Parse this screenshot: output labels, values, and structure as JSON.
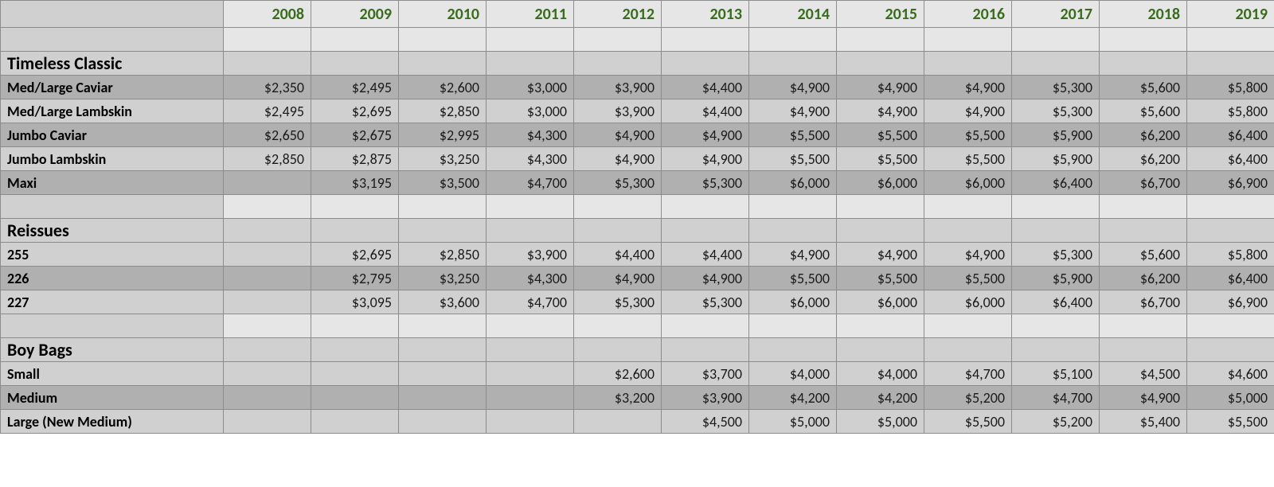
{
  "colors": {
    "header_text": "#3a6b1f",
    "header_bg": "#e6e6e6",
    "light_row": "#d0d0d0",
    "dark_row": "#b0b0b0",
    "border": "#8c8c8c",
    "text": "#000000"
  },
  "typography": {
    "font_family": "Calibri, Segoe UI, Arial, sans-serif",
    "header_fontsize": 20,
    "section_fontsize": 22,
    "cell_fontsize": 18,
    "header_weight": 700,
    "label_weight": 700
  },
  "years": [
    "2008",
    "2009",
    "2010",
    "2011",
    "2012",
    "2013",
    "2014",
    "2015",
    "2016",
    "2017",
    "2018",
    "2019"
  ],
  "sections": [
    {
      "title": "Timeless Classic",
      "rows": [
        {
          "label": "Med/Large Caviar",
          "shade": "dark",
          "values": [
            "$2,350",
            "$2,495",
            "$2,600",
            "$3,000",
            "$3,900",
            "$4,400",
            "$4,900",
            "$4,900",
            "$4,900",
            "$5,300",
            "$5,600",
            "$5,800"
          ]
        },
        {
          "label": "Med/Large Lambskin",
          "shade": "light",
          "values": [
            "$2,495",
            "$2,695",
            "$2,850",
            "$3,000",
            "$3,900",
            "$4,400",
            "$4,900",
            "$4,900",
            "$4,900",
            "$5,300",
            "$5,600",
            "$5,800"
          ]
        },
        {
          "label": "Jumbo Caviar",
          "shade": "dark",
          "values": [
            "$2,650",
            "$2,675",
            "$2,995",
            "$4,300",
            "$4,900",
            "$4,900",
            "$5,500",
            "$5,500",
            "$5,500",
            "$5,900",
            "$6,200",
            "$6,400"
          ]
        },
        {
          "label": "Jumbo Lambskin",
          "shade": "light",
          "values": [
            "$2,850",
            "$2,875",
            "$3,250",
            "$4,300",
            "$4,900",
            "$4,900",
            "$5,500",
            "$5,500",
            "$5,500",
            "$5,900",
            "$6,200",
            "$6,400"
          ]
        },
        {
          "label": "Maxi",
          "shade": "dark",
          "values": [
            "",
            "$3,195",
            "$3,500",
            "$4,700",
            "$5,300",
            "$5,300",
            "$6,000",
            "$6,000",
            "$6,000",
            "$6,400",
            "$6,700",
            "$6,900"
          ]
        }
      ]
    },
    {
      "title": "Reissues",
      "rows": [
        {
          "label": "255",
          "shade": "light",
          "values": [
            "",
            "$2,695",
            "$2,850",
            "$3,900",
            "$4,400",
            "$4,400",
            "$4,900",
            "$4,900",
            "$4,900",
            "$5,300",
            "$5,600",
            "$5,800"
          ]
        },
        {
          "label": "226",
          "shade": "dark",
          "values": [
            "",
            "$2,795",
            "$3,250",
            "$4,300",
            "$4,900",
            "$4,900",
            "$5,500",
            "$5,500",
            "$5,500",
            "$5,900",
            "$6,200",
            "$6,400"
          ]
        },
        {
          "label": "227",
          "shade": "light",
          "values": [
            "",
            "$3,095",
            "$3,600",
            "$4,700",
            "$5,300",
            "$5,300",
            "$6,000",
            "$6,000",
            "$6,000",
            "$6,400",
            "$6,700",
            "$6,900"
          ]
        }
      ]
    },
    {
      "title": "Boy Bags",
      "rows": [
        {
          "label": "Small",
          "shade": "light",
          "values": [
            "",
            "",
            "",
            "",
            "$2,600",
            "$3,700",
            "$4,000",
            "$4,000",
            "$4,700",
            "$5,100",
            "$4,500",
            "$4,600"
          ]
        },
        {
          "label": "Medium",
          "shade": "dark",
          "values": [
            "",
            "",
            "",
            "",
            "$3,200",
            "$3,900",
            "$4,200",
            "$4,200",
            "$5,200",
            "$4,700",
            "$4,900",
            "$5,000"
          ]
        },
        {
          "label": "Large  (New Medium)",
          "shade": "light",
          "values": [
            "",
            "",
            "",
            "",
            "",
            "$4,500",
            "$5,000",
            "$5,000",
            "$5,500",
            "$5,200",
            "$5,400",
            "$5,500"
          ]
        }
      ]
    }
  ]
}
